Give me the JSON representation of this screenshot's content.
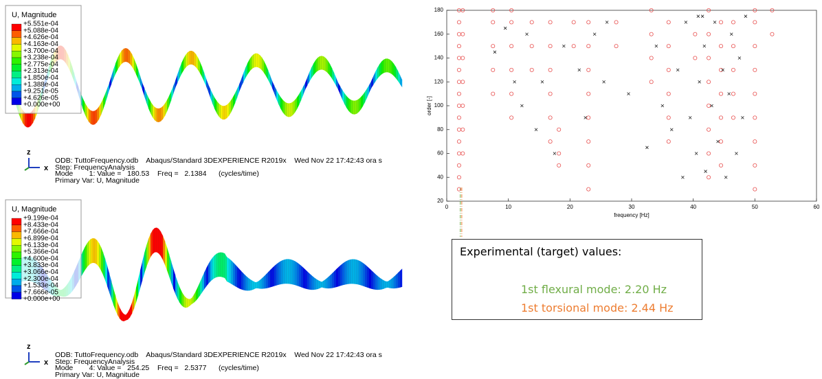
{
  "panels": [
    {
      "legend_title": "U, Magnitude",
      "legend_labels": [
        "+5.551e-04",
        "+5.088e-04",
        "+4.626e-04",
        "+4.163e-04",
        "+3.700e-04",
        "+3.238e-04",
        "+2.775e-04",
        "+2.313e-04",
        "+1.850e-04",
        "+1.388e-04",
        "+9.251e-05",
        "+4.626e-05",
        "+0.000e+00"
      ],
      "triad": [
        "z",
        "x"
      ],
      "info": [
        "ODB: TuttoFrequency.odb    Abaqus/Standard 3DEXPERIENCE R2019x    Wed Nov 22 17:42:43 ora s",
        "Step: FrequencyAnalysis",
        "Mode        1: Value =   180.53    Freq =   2.1384      (cycles/time)",
        "Primary Var: U, Magnitude"
      ]
    },
    {
      "legend_title": "U, Magnitude",
      "legend_labels": [
        "+9.199e-04",
        "+8.433e-04",
        "+7.666e-04",
        "+6.899e-04",
        "+6.133e-04",
        "+5.366e-04",
        "+4.600e-04",
        "+3.833e-04",
        "+3.066e-04",
        "+2.300e-04",
        "+1.533e-04",
        "+7.666e-05",
        "+0.000e+00"
      ],
      "triad": [
        "z",
        "x"
      ],
      "info": [
        "ODB: TuttoFrequency.odb    Abaqus/Standard 3DEXPERIENCE R2019x    Wed Nov 22 17:42:43 ora s",
        "Step: FrequencyAnalysis",
        "Mode        4: Value =   254.25    Freq =   2.5377      (cycles/time)",
        "Primary Var: U, Magnitude"
      ]
    }
  ],
  "chart_data": {
    "type": "scatter",
    "xlabel": "frequency [Hz]",
    "ylabel": "order [-]",
    "xlim": [
      0,
      60
    ],
    "xticks": [
      0,
      10,
      20,
      30,
      40,
      50,
      60
    ],
    "ylim": [
      20,
      180
    ],
    "yticks": [
      20,
      40,
      60,
      80,
      100,
      120,
      140,
      160,
      180
    ],
    "grid": false,
    "series": [
      {
        "color": "#e8504f",
        "marker": "circle",
        "x": [
          2,
          2,
          2,
          2,
          2,
          2,
          2,
          2,
          2,
          2,
          2,
          2,
          2,
          2,
          2,
          2,
          2.6,
          2.6,
          2.6,
          2.6,
          2.6,
          2.6,
          2.6,
          7.5,
          7.5,
          7.5,
          7.5,
          7.5,
          10.5,
          10.5,
          10.5,
          10.5,
          10.5,
          10.5,
          13.8,
          13.8,
          13.8,
          16.8,
          16.8,
          16.8,
          16.8,
          16.8,
          16.8,
          18.2,
          18.2,
          18.2,
          20.6,
          20.6,
          23,
          23,
          23,
          23,
          23,
          23,
          23,
          23,
          27.5,
          27.5,
          33.2,
          33.2,
          33.2,
          33.2,
          36,
          36,
          36,
          36,
          36,
          36,
          40.3,
          40.3,
          42.5,
          42.5,
          42.5,
          42.5,
          42.5,
          42.5,
          42.5,
          42.5,
          44.5,
          44.5,
          44.5,
          44.5,
          44.5,
          44.5,
          44.5,
          46.5,
          46.5,
          46.5,
          46.5,
          46.5,
          50,
          50,
          50,
          50,
          50,
          50,
          50,
          50,
          50,
          52.8,
          52.8
        ],
        "values": [
          30,
          40,
          50,
          60,
          70,
          80,
          90,
          100,
          110,
          120,
          130,
          140,
          150,
          160,
          170,
          180,
          60,
          80,
          100,
          120,
          140,
          160,
          180,
          110,
          130,
          150,
          170,
          180,
          90,
          110,
          130,
          150,
          170,
          180,
          130,
          150,
          170,
          70,
          90,
          110,
          130,
          150,
          170,
          50,
          60,
          80,
          150,
          170,
          30,
          50,
          70,
          90,
          110,
          130,
          150,
          170,
          150,
          170,
          120,
          140,
          160,
          180,
          70,
          90,
          110,
          130,
          150,
          170,
          140,
          160,
          40,
          60,
          80,
          100,
          120,
          140,
          160,
          180,
          50,
          70,
          90,
          110,
          130,
          150,
          170,
          90,
          110,
          130,
          150,
          170,
          30,
          50,
          70,
          90,
          110,
          130,
          150,
          170,
          180,
          160,
          180
        ]
      },
      {
        "color": "#222222",
        "marker": "x",
        "x": [
          7.8,
          9.5,
          11,
          12.2,
          13,
          14.5,
          15.5,
          17.5,
          19,
          21.5,
          22.5,
          24,
          25.5,
          26,
          29.5,
          32.5,
          34,
          35,
          36.5,
          37.5,
          38.3,
          38.8,
          39.5,
          40.5,
          41,
          41.8,
          42,
          43,
          43.5,
          44,
          44.8,
          45.3,
          45.8,
          46.2,
          47,
          47.5,
          48,
          48.5,
          41.5,
          40.8
        ],
        "values": [
          145,
          165,
          120,
          100,
          160,
          80,
          120,
          60,
          150,
          130,
          90,
          160,
          120,
          170,
          110,
          65,
          150,
          100,
          80,
          130,
          40,
          170,
          90,
          60,
          120,
          150,
          45,
          100,
          170,
          70,
          130,
          40,
          110,
          160,
          60,
          140,
          90,
          175,
          175,
          175
        ]
      }
    ],
    "reference_lines": [
      {
        "value": 2.2,
        "color": "#70ad47"
      },
      {
        "value": 2.44,
        "color": "#ed7d31"
      }
    ]
  },
  "note": {
    "title": "Experimental (target) values:",
    "lines": [
      "1st flexural mode: 2.20 Hz",
      "1st torsional mode: 2.44 Hz"
    ]
  }
}
